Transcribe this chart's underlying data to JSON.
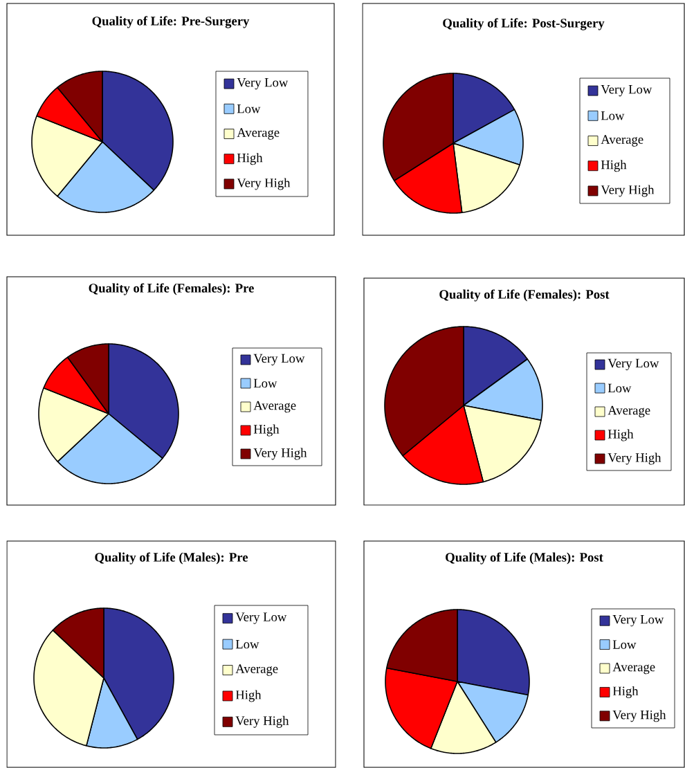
{
  "chart_data": [
    {
      "type": "pie",
      "title": "Quality of Life: Pre-Surgery",
      "categories": [
        "Very Low",
        "Low",
        "Average",
        "High",
        "Very High"
      ],
      "values": [
        37,
        24,
        20,
        8,
        11
      ],
      "colors": [
        "#333399",
        "#99ccff",
        "#ffffcc",
        "#ff0000",
        "#800000"
      ],
      "legend": "right"
    },
    {
      "type": "pie",
      "title": "Quality of Life: Post-Surgery",
      "categories": [
        "Very Low",
        "Low",
        "Average",
        "High",
        "Very High"
      ],
      "values": [
        17,
        13,
        18,
        18,
        34
      ],
      "colors": [
        "#333399",
        "#99ccff",
        "#ffffcc",
        "#ff0000",
        "#800000"
      ],
      "legend": "right"
    },
    {
      "type": "pie",
      "title": "Quality of Life (Females): Pre",
      "categories": [
        "Very Low",
        "Low",
        "Average",
        "High",
        "Very High"
      ],
      "values": [
        36,
        27,
        18,
        9,
        10
      ],
      "colors": [
        "#333399",
        "#99ccff",
        "#ffffcc",
        "#ff0000",
        "#800000"
      ],
      "legend": "right"
    },
    {
      "type": "pie",
      "title": "Quality of Life (Females): Post",
      "categories": [
        "Very Low",
        "Low",
        "Average",
        "High",
        "Very High"
      ],
      "values": [
        15,
        13,
        18,
        18,
        36
      ],
      "colors": [
        "#333399",
        "#99ccff",
        "#ffffcc",
        "#ff0000",
        "#800000"
      ],
      "legend": "right"
    },
    {
      "type": "pie",
      "title": "Quality of Life (Males): Pre",
      "categories": [
        "Very Low",
        "Low",
        "Average",
        "High",
        "Very High"
      ],
      "values": [
        42,
        12,
        33,
        0,
        13
      ],
      "colors": [
        "#333399",
        "#99ccff",
        "#ffffcc",
        "#ff0000",
        "#800000"
      ],
      "legend": "right"
    },
    {
      "type": "pie",
      "title": "Quality of Life (Males): Post",
      "categories": [
        "Very Low",
        "Low",
        "Average",
        "High",
        "Very High"
      ],
      "values": [
        28,
        13,
        15,
        22,
        22
      ],
      "colors": [
        "#333399",
        "#99ccff",
        "#ffffcc",
        "#ff0000",
        "#800000"
      ],
      "legend": "right"
    }
  ]
}
